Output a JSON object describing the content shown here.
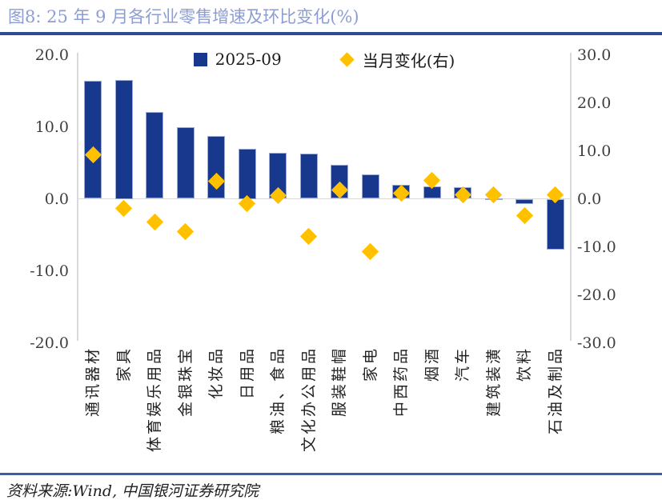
{
  "page": {
    "title": "图8: 25 年 9 月各行业零售增速及环比变化(%)",
    "source": "资料来源:Wind, 中国银河证券研究院"
  },
  "colors": {
    "title_text": "#8B9DD3",
    "title_rule": "#2E4C93",
    "bar_fill": "#17388C",
    "bar_edge": "#9AAAD6",
    "diamond_fill": "#FFC000",
    "axis_line": "#D9D9D9",
    "tick_text": "#3d3d3d",
    "source_rule": "#3C5DA8"
  },
  "chart_data": {
    "type": "bar",
    "subtype": "combo-bar-with-diamond-scatter-dual-axis",
    "title": "图8: 25 年 9 月各行业零售增速及环比变化(%)",
    "categories": [
      "通讯器材",
      "家具",
      "体育娱乐用品",
      "金银珠宝",
      "化妆品",
      "日用品",
      "粮油、食品",
      "文化办公用品",
      "服装鞋帽",
      "家电",
      "中西药品",
      "烟酒",
      "汽车",
      "建筑装潢",
      "饮料",
      "石油及制品"
    ],
    "series": [
      {
        "name": "2025-09",
        "type": "bar",
        "axis": "left",
        "color": "#17388C",
        "values": [
          16.4,
          16.5,
          12.1,
          9.9,
          8.7,
          7.0,
          6.4,
          6.3,
          4.7,
          3.4,
          1.9,
          1.7,
          1.6,
          0.1,
          -0.7,
          -7.0
        ]
      },
      {
        "name": "当月变化(右)",
        "type": "scatter",
        "marker": "diamond",
        "axis": "right",
        "color": "#FFC000",
        "values": [
          9.2,
          -2.0,
          -4.9,
          -6.9,
          3.6,
          -1.0,
          0.6,
          -7.8,
          1.9,
          -11.0,
          1.2,
          3.8,
          0.9,
          0.8,
          -3.5,
          0.8
        ]
      }
    ],
    "left_axis": {
      "range": [
        -20,
        20
      ],
      "ticks": [
        20,
        10,
        0,
        -10,
        -20
      ],
      "labels": [
        "20.0",
        "10.0",
        "0.0",
        "-10.0",
        "-20.0"
      ]
    },
    "right_axis": {
      "range": [
        -30,
        30
      ],
      "ticks": [
        30,
        20,
        10,
        0,
        -10,
        -20,
        -30
      ],
      "labels": [
        "30.0",
        "20.0",
        "10.0",
        "0.0",
        "-10.0",
        "-20.0",
        "-30.0"
      ]
    },
    "legend": [
      {
        "label": "2025-09",
        "marker": "square",
        "color": "#17388C"
      },
      {
        "label": "当月变化(右)",
        "marker": "diamond",
        "color": "#FFC000"
      }
    ],
    "legend_position": "top-center",
    "grid": false,
    "xlabel": "",
    "ylabel": ""
  }
}
